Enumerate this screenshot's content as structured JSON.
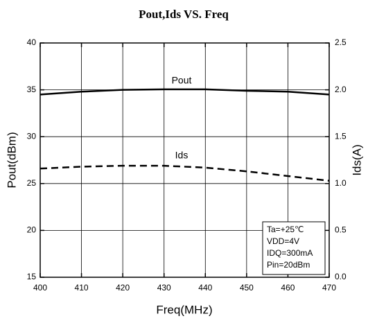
{
  "chart_data": {
    "type": "line",
    "title": "Pout,Ids VS. Freq",
    "x_label": "Freq(MHz)",
    "y_label": "Pout(dBm)",
    "y2_label": "Ids(A)",
    "x": [
      400,
      410,
      420,
      430,
      440,
      450,
      460,
      470
    ],
    "series": [
      {
        "name": "Pout",
        "color": "#000000",
        "style": "solid",
        "values": [
          34.5,
          34.8,
          35.0,
          35.05,
          35.05,
          34.9,
          34.8,
          34.5
        ]
      },
      {
        "name": "Ids",
        "color": "#000000",
        "style": "dashed",
        "axis": "y2",
        "values": [
          1.16,
          1.18,
          1.19,
          1.19,
          1.17,
          1.13,
          1.08,
          1.03
        ]
      }
    ],
    "xlim": [
      400,
      470
    ],
    "xticks": [
      400,
      410,
      420,
      430,
      440,
      450,
      460,
      470
    ],
    "ylim": [
      15,
      40
    ],
    "yticks": [
      15,
      20,
      25,
      30,
      35,
      40
    ],
    "y2lim": [
      0,
      2.5
    ],
    "y2ticks": [
      {
        "value": 0,
        "label": "0.0"
      },
      {
        "value": 0.5,
        "label": "0.5"
      },
      {
        "value": 1,
        "label": "1.0"
      },
      {
        "value": 1.5,
        "label": "1.5"
      },
      {
        "value": 2,
        "label": "2.0"
      },
      {
        "value": 2.5,
        "label": "2.5"
      }
    ],
    "grid": true,
    "annotations": [
      "Ta=+25℃",
      "VDD=4V",
      "IDQ=300mA",
      "Pin=20dBm"
    ]
  }
}
